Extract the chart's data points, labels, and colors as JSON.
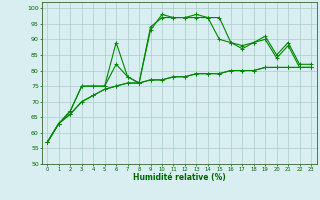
{
  "title": "",
  "xlabel": "Humidité relative (%)",
  "ylabel": "",
  "bg_color": "#d8eef0",
  "line_color": "#008800",
  "marker_color": "#008800",
  "grid_color": "#aacccc",
  "xlim": [
    -0.5,
    23.5
  ],
  "ylim": [
    50,
    102
  ],
  "xticks": [
    0,
    1,
    2,
    3,
    4,
    5,
    6,
    7,
    8,
    9,
    10,
    11,
    12,
    13,
    14,
    15,
    16,
    17,
    18,
    19,
    20,
    21,
    22,
    23
  ],
  "yticks": [
    50,
    55,
    60,
    65,
    70,
    75,
    80,
    85,
    90,
    95,
    100
  ],
  "series": [
    [
      57,
      63,
      67,
      75,
      75,
      75,
      89,
      78,
      76,
      94,
      97,
      97,
      97,
      97,
      97,
      90,
      89,
      88,
      89,
      91,
      85,
      89,
      82,
      82
    ],
    [
      57,
      63,
      67,
      75,
      75,
      75,
      82,
      78,
      76,
      93,
      98,
      97,
      97,
      98,
      97,
      97,
      89,
      87,
      89,
      90,
      84,
      88,
      81,
      81
    ],
    [
      57,
      63,
      66,
      70,
      72,
      74,
      75,
      76,
      76,
      77,
      77,
      78,
      78,
      79,
      79,
      79,
      80,
      80,
      80,
      81,
      81,
      81,
      81,
      81
    ],
    [
      57,
      63,
      66,
      70,
      72,
      74,
      75,
      76,
      76,
      77,
      77,
      78,
      78,
      79,
      79,
      79,
      80,
      80,
      80,
      81,
      81,
      81,
      81,
      81
    ]
  ]
}
